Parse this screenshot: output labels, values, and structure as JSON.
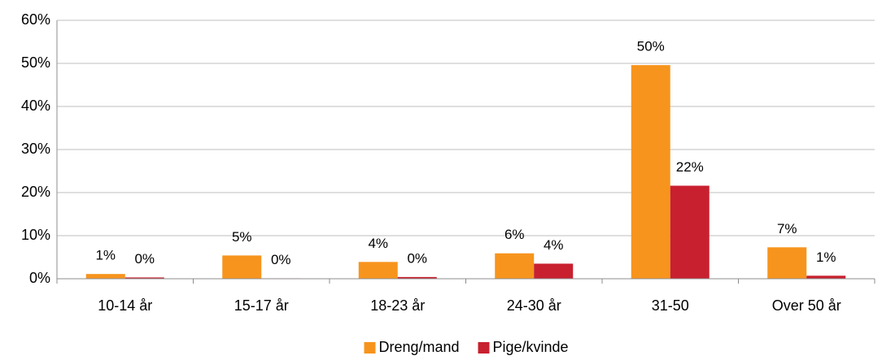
{
  "chart_data": {
    "type": "bar",
    "categories": [
      "10-14 år",
      "15-17 år",
      "18-23 år",
      "24-30 år",
      "31-50",
      "Over 50 år"
    ],
    "series": [
      {
        "name": "Dreng/mand",
        "color": "#f7941d",
        "values": [
          1.1,
          5.4,
          3.9,
          5.9,
          49.6,
          7.3
        ],
        "value_labels": [
          "1%",
          "5%",
          "4%",
          "6%",
          "50%",
          "7%"
        ]
      },
      {
        "name": "Pige/kvinde",
        "color": "#c8202f",
        "values": [
          0.3,
          0.1,
          0.4,
          3.5,
          21.6,
          0.7
        ],
        "value_labels": [
          "0%",
          "0%",
          "0%",
          "4%",
          "22%",
          "1%"
        ]
      }
    ],
    "ylim": [
      0,
      60
    ],
    "yticks": [
      {
        "value": 0,
        "label": "0%"
      },
      {
        "value": 10,
        "label": "10%"
      },
      {
        "value": 20,
        "label": "20%"
      },
      {
        "value": 30,
        "label": "30%"
      },
      {
        "value": 40,
        "label": "40%"
      },
      {
        "value": 50,
        "label": "50%"
      },
      {
        "value": 60,
        "label": "60%"
      }
    ],
    "grid": true,
    "legend": "bottom"
  }
}
